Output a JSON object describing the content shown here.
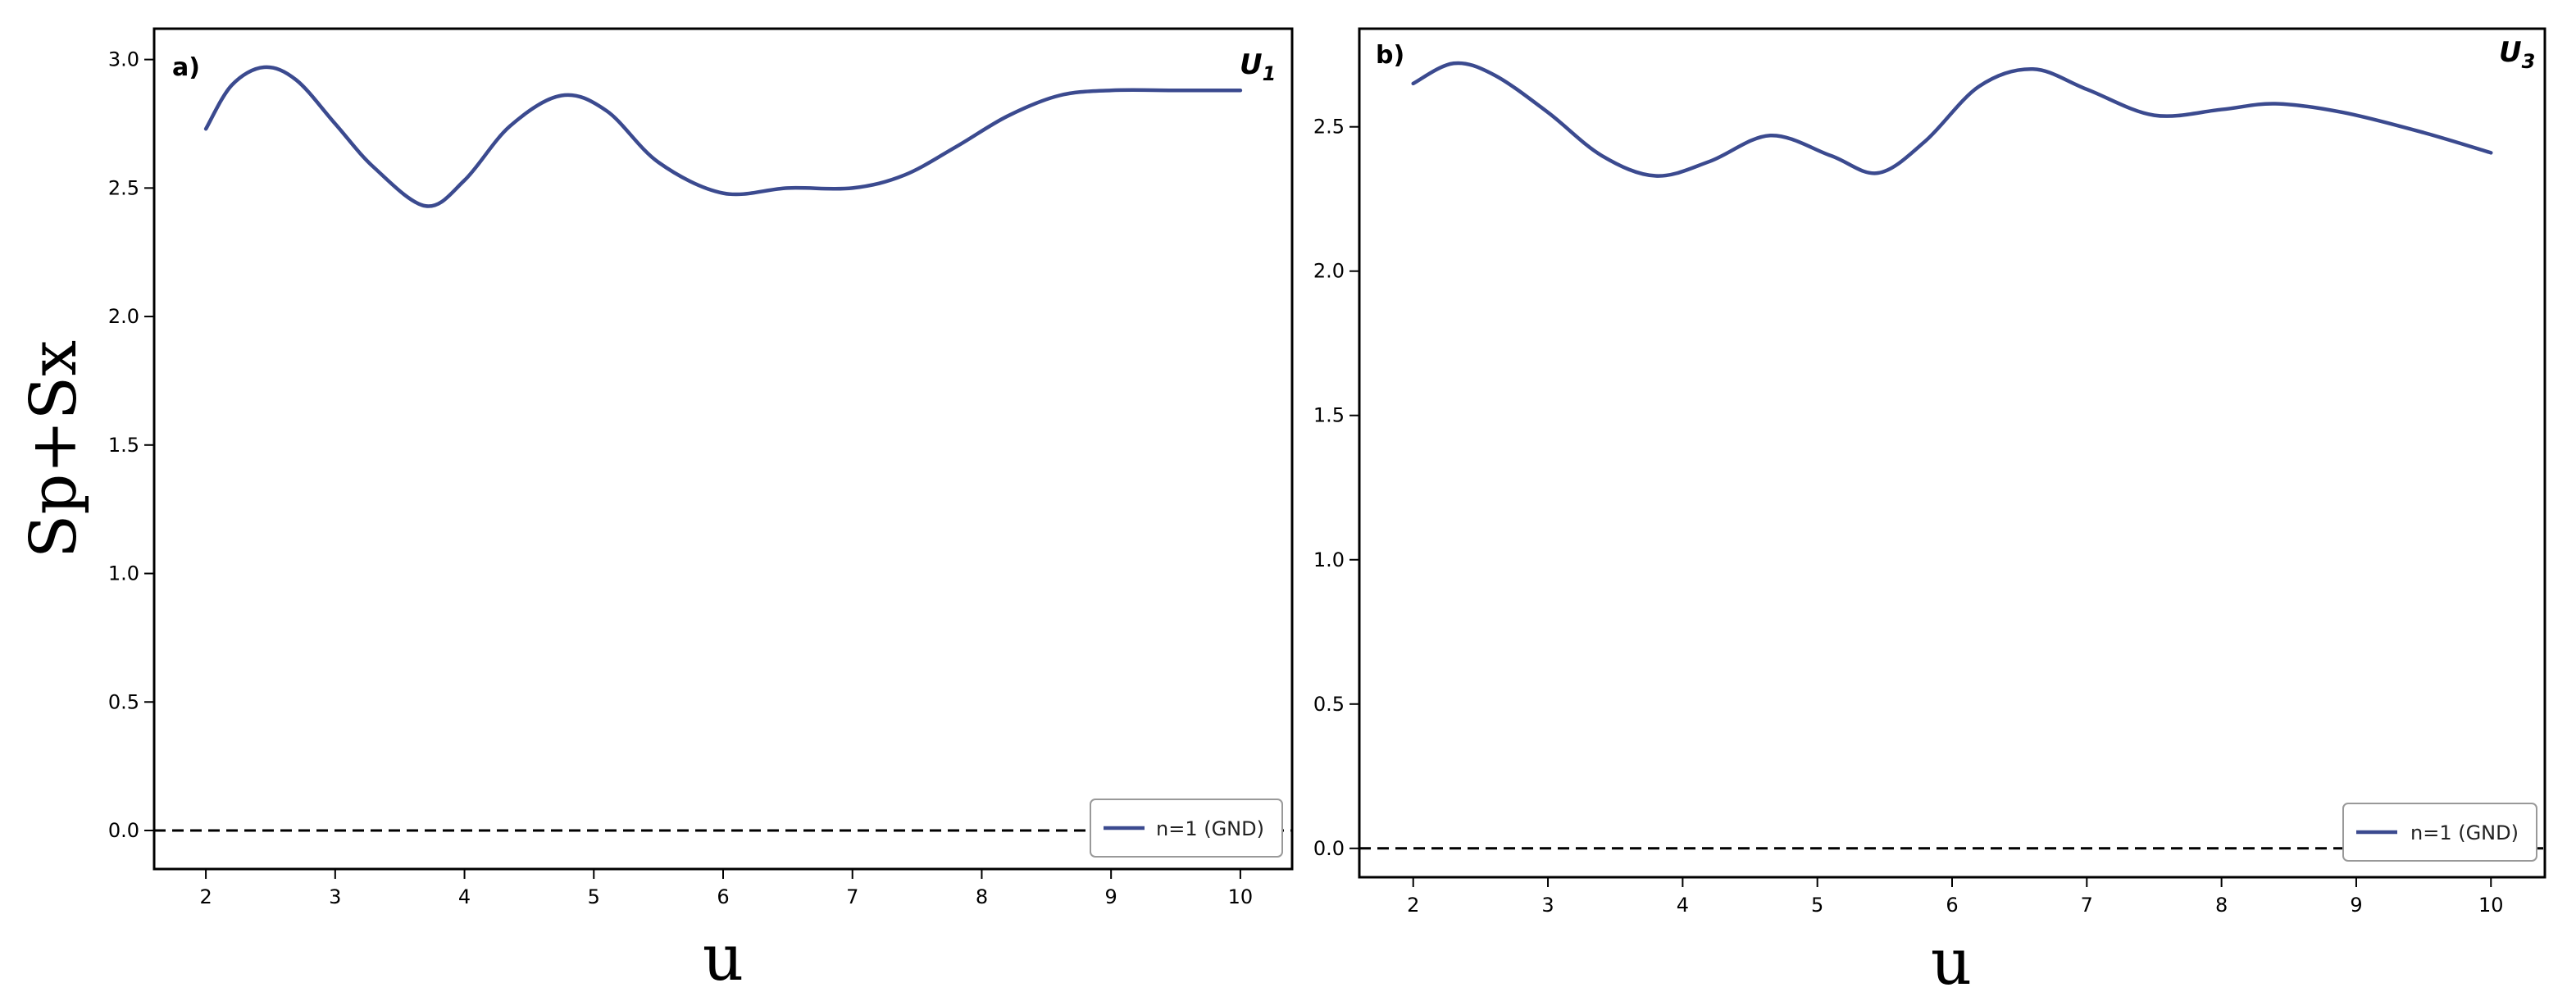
{
  "colors": {
    "series": "#3b4a8f",
    "zero_line": "#000000",
    "frame": "#000000"
  },
  "chart_data": [
    {
      "type": "line",
      "panel_label": "a)",
      "corner_label": "U",
      "corner_label_sub": "1",
      "xlabel": "u",
      "ylabel": "Sp+Sx",
      "xlim": [
        1.6,
        10.4
      ],
      "ylim": [
        -0.15,
        3.12
      ],
      "xticks": [
        2,
        3,
        4,
        5,
        6,
        7,
        8,
        9,
        10
      ],
      "yticks": [
        0.0,
        0.5,
        1.0,
        1.5,
        2.0,
        2.5,
        3.0
      ],
      "grid": false,
      "legend_position": "lower-right",
      "reference_line": {
        "y": 0.0,
        "style": "dashed"
      },
      "series": [
        {
          "name": "n=1 (GND)",
          "x": [
            2.0,
            2.2,
            2.45,
            2.7,
            3.0,
            3.3,
            3.7,
            4.0,
            4.35,
            4.75,
            5.1,
            5.5,
            6.0,
            6.5,
            7.0,
            7.4,
            7.8,
            8.2,
            8.6,
            9.0,
            9.5,
            10.0
          ],
          "y": [
            2.73,
            2.9,
            2.97,
            2.92,
            2.75,
            2.58,
            2.43,
            2.53,
            2.74,
            2.86,
            2.8,
            2.6,
            2.48,
            2.5,
            2.5,
            2.55,
            2.66,
            2.78,
            2.86,
            2.88,
            2.88,
            2.88
          ]
        }
      ]
    },
    {
      "type": "line",
      "panel_label": "b)",
      "corner_label": "U",
      "corner_label_sub": "3",
      "xlabel": "u",
      "ylabel": "",
      "xlim": [
        1.6,
        10.4
      ],
      "ylim": [
        -0.1,
        2.84
      ],
      "xticks": [
        2,
        3,
        4,
        5,
        6,
        7,
        8,
        9,
        10
      ],
      "yticks": [
        0.0,
        0.5,
        1.0,
        1.5,
        2.0,
        2.5
      ],
      "grid": false,
      "legend_position": "lower-right",
      "reference_line": {
        "y": 0.0,
        "style": "dashed"
      },
      "series": [
        {
          "name": "n=1 (GND)",
          "x": [
            2.0,
            2.3,
            2.6,
            3.0,
            3.4,
            3.8,
            4.2,
            4.65,
            5.1,
            5.45,
            5.8,
            6.2,
            6.6,
            7.0,
            7.5,
            8.0,
            8.4,
            8.9,
            9.5,
            10.0
          ],
          "y": [
            2.65,
            2.72,
            2.68,
            2.55,
            2.4,
            2.33,
            2.38,
            2.47,
            2.4,
            2.34,
            2.45,
            2.64,
            2.7,
            2.63,
            2.54,
            2.56,
            2.58,
            2.55,
            2.48,
            2.41
          ]
        }
      ]
    }
  ]
}
